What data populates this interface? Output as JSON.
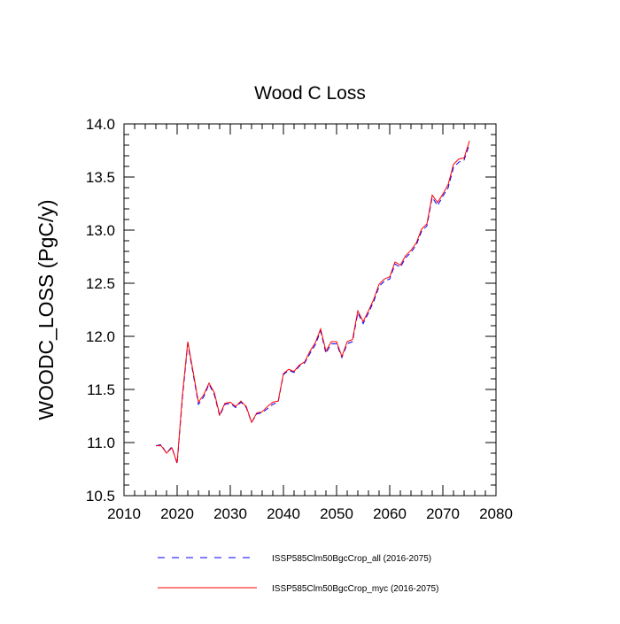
{
  "chart_data": {
    "type": "line",
    "title": "Wood C Loss",
    "xlabel": "",
    "ylabel": "WOODC_LOSS  (PgC/y)",
    "xlim": [
      2010,
      2080
    ],
    "ylim": [
      10.5,
      14.0
    ],
    "xticks": [
      2010,
      2020,
      2030,
      2040,
      2050,
      2060,
      2070,
      2080
    ],
    "yticks": [
      10.5,
      11.0,
      11.5,
      12.0,
      12.5,
      13.0,
      13.5,
      14.0
    ],
    "xtick_labels": [
      "2010",
      "2020",
      "2030",
      "2040",
      "2050",
      "2060",
      "2070",
      "2080"
    ],
    "ytick_labels": [
      "10.5",
      "11.0",
      "11.5",
      "12.0",
      "12.5",
      "13.0",
      "13.5",
      "14.0"
    ],
    "grid": false,
    "legend": "bottom",
    "x": [
      2016,
      2017,
      2018,
      2019,
      2020,
      2021,
      2022,
      2023,
      2024,
      2025,
      2026,
      2027,
      2028,
      2029,
      2030,
      2031,
      2032,
      2033,
      2034,
      2035,
      2036,
      2037,
      2038,
      2039,
      2040,
      2041,
      2042,
      2043,
      2044,
      2045,
      2046,
      2047,
      2048,
      2049,
      2050,
      2051,
      2052,
      2053,
      2054,
      2055,
      2056,
      2057,
      2058,
      2059,
      2060,
      2061,
      2062,
      2063,
      2064,
      2065,
      2066,
      2067,
      2068,
      2069,
      2070,
      2071,
      2072,
      2073,
      2074,
      2075
    ],
    "series": [
      {
        "name": "ISSP585Clm50BgcCrop_all (2016-2075)",
        "color": "#0000ff",
        "dash": "dashed",
        "values": [
          10.97,
          10.98,
          10.9,
          10.96,
          10.8,
          11.42,
          11.93,
          11.65,
          11.36,
          11.43,
          11.55,
          11.45,
          11.25,
          11.36,
          11.37,
          11.33,
          11.38,
          11.33,
          11.19,
          11.27,
          11.28,
          11.32,
          11.36,
          11.38,
          11.64,
          11.68,
          11.66,
          11.72,
          11.75,
          11.84,
          11.92,
          12.05,
          11.84,
          11.93,
          11.93,
          11.8,
          11.93,
          11.95,
          12.22,
          12.12,
          12.22,
          12.33,
          12.47,
          12.52,
          12.54,
          12.68,
          12.65,
          12.74,
          12.79,
          12.86,
          12.99,
          13.04,
          13.31,
          13.23,
          13.32,
          13.4,
          13.59,
          13.64,
          13.66,
          13.81
        ]
      },
      {
        "name": "ISSP585Clm50BgcCrop_myc (2016-2075)",
        "color": "#ff0000",
        "dash": "solid",
        "values": [
          10.97,
          10.97,
          10.9,
          10.95,
          10.81,
          11.45,
          11.95,
          11.67,
          11.38,
          11.45,
          11.56,
          11.47,
          11.26,
          11.37,
          11.38,
          11.34,
          11.39,
          11.34,
          11.19,
          11.28,
          11.29,
          11.34,
          11.38,
          11.39,
          11.65,
          11.69,
          11.67,
          11.73,
          11.76,
          11.86,
          11.94,
          12.07,
          11.86,
          11.95,
          11.95,
          11.81,
          11.95,
          11.97,
          12.24,
          12.14,
          12.24,
          12.35,
          12.49,
          12.54,
          12.56,
          12.7,
          12.67,
          12.76,
          12.81,
          12.88,
          13.01,
          13.06,
          13.33,
          13.26,
          13.34,
          13.43,
          13.62,
          13.67,
          13.68,
          13.84
        ]
      }
    ]
  }
}
